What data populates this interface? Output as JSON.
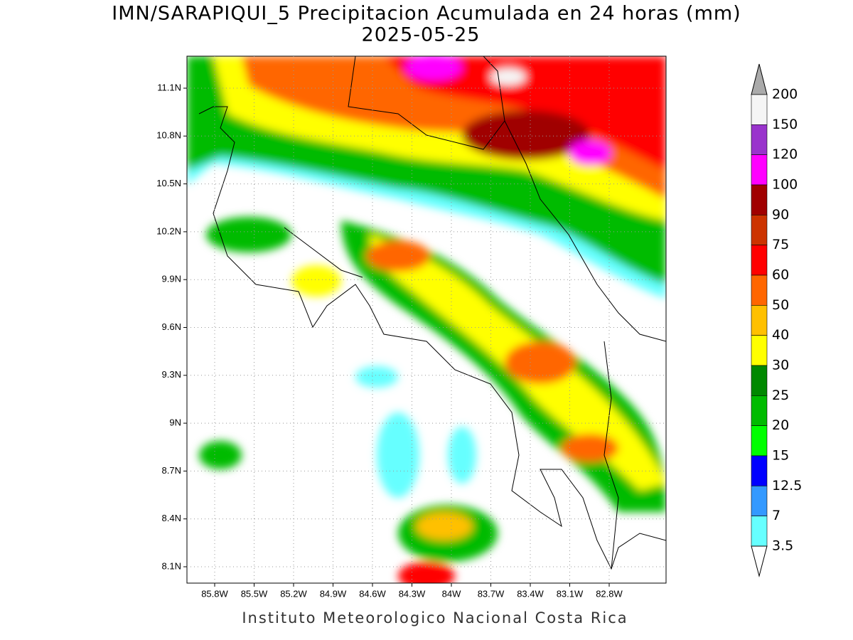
{
  "header": {
    "title": "IMN/SARAPIQUI_5 Precipitacion Acumulada en 24 horas (mm)",
    "date": "2025-05-25"
  },
  "map": {
    "lat_ticks": [
      "11.1N",
      "10.8N",
      "10.5N",
      "10.2N",
      "9.9N",
      "9.6N",
      "9.3N",
      "9N",
      "8.7N",
      "8.4N",
      "8.1N"
    ],
    "lon_ticks": [
      "85.8W",
      "85.5W",
      "85.2W",
      "84.9W",
      "84.6W",
      "84.3W",
      "84W",
      "83.7W",
      "83.4W",
      "83.1W",
      "82.8W"
    ]
  },
  "colorbar": {
    "levels": [
      200,
      150,
      120,
      100,
      90,
      75,
      60,
      50,
      40,
      30,
      25,
      20,
      15,
      12.5,
      7,
      3.5
    ],
    "colors": [
      "#aaaaaa",
      "#f5f5f5",
      "#9933cc",
      "#ff00ff",
      "#a00000",
      "#cc3300",
      "#ff0000",
      "#ff6600",
      "#ffc000",
      "#ffff00",
      "#008800",
      "#00bb00",
      "#00ff00",
      "#0000ff",
      "#3399ff",
      "#66ffff",
      "#ffffff"
    ]
  },
  "footer": "Instituto Meteorologico Nacional Costa Rica"
}
